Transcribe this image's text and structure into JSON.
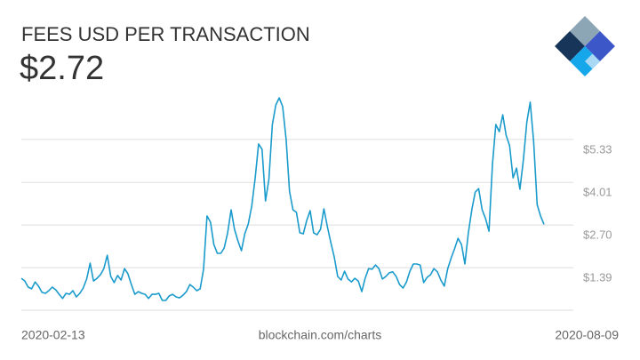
{
  "chart_data": {
    "type": "line",
    "title": "FEES USD PER TRANSACTION",
    "headline": "$2.72",
    "x_start_label": "2020-02-13",
    "x_end_label": "2020-08-09",
    "source": "blockchain.com/charts",
    "color": "#1a9bcc",
    "grid": true,
    "ylim": [
      0.08,
      6.64
    ],
    "yticks": [
      {
        "value": 1.39,
        "label": "$1.39"
      },
      {
        "value": 2.7,
        "label": "$2.70"
      },
      {
        "value": 4.01,
        "label": "$4.01"
      },
      {
        "value": 5.33,
        "label": "$5.33"
      }
    ],
    "values": [
      1.06,
      0.98,
      0.79,
      0.74,
      0.95,
      0.82,
      0.63,
      0.6,
      0.68,
      0.79,
      0.71,
      0.57,
      0.44,
      0.6,
      0.57,
      0.68,
      0.49,
      0.6,
      0.76,
      1.04,
      1.53,
      0.98,
      1.06,
      1.17,
      1.36,
      1.77,
      1.12,
      0.93,
      1.15,
      1.01,
      1.36,
      1.2,
      0.87,
      0.57,
      0.65,
      0.6,
      0.57,
      0.44,
      0.57,
      0.57,
      0.6,
      0.38,
      0.38,
      0.52,
      0.57,
      0.49,
      0.46,
      0.54,
      0.65,
      0.87,
      0.79,
      0.68,
      0.74,
      1.34,
      2.98,
      2.79,
      2.1,
      1.83,
      1.83,
      1.99,
      2.46,
      3.17,
      2.57,
      2.21,
      1.91,
      2.43,
      2.73,
      3.28,
      4.15,
      5.19,
      5.03,
      3.44,
      4.1,
      5.79,
      6.39,
      6.61,
      6.34,
      5.33,
      3.74,
      3.17,
      3.09,
      2.46,
      2.43,
      2.84,
      3.14,
      2.46,
      2.4,
      2.57,
      3.2,
      2.65,
      2.16,
      1.72,
      1.12,
      1.01,
      1.28,
      1.04,
      0.95,
      1.06,
      0.98,
      0.65,
      1.06,
      1.36,
      1.34,
      1.47,
      1.36,
      1.04,
      1.12,
      1.23,
      1.26,
      1.12,
      0.87,
      0.76,
      0.95,
      1.28,
      1.5,
      1.5,
      1.47,
      0.93,
      1.09,
      1.17,
      1.36,
      1.26,
      1.01,
      0.82,
      1.36,
      1.69,
      1.97,
      2.29,
      2.1,
      1.5,
      2.46,
      3.17,
      3.71,
      3.82,
      3.17,
      2.9,
      2.51,
      4.56,
      5.79,
      5.57,
      6.09,
      5.46,
      5.14,
      4.15,
      4.45,
      3.8,
      4.7,
      5.87,
      6.48,
      5.25,
      3.33,
      2.98,
      2.72
    ]
  }
}
